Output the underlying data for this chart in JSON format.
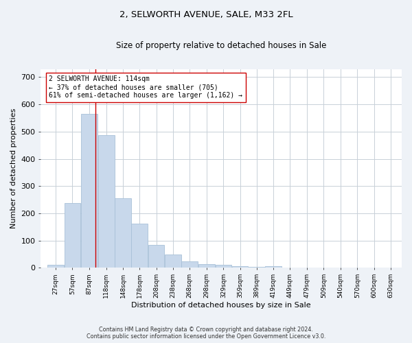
{
  "title": "2, SELWORTH AVENUE, SALE, M33 2FL",
  "subtitle": "Size of property relative to detached houses in Sale",
  "xlabel": "Distribution of detached houses by size in Sale",
  "ylabel": "Number of detached properties",
  "bar_color": "#c8d8eb",
  "bar_edge_color": "#a8c0d8",
  "bin_labels": [
    "27sqm",
    "57sqm",
    "87sqm",
    "118sqm",
    "148sqm",
    "178sqm",
    "208sqm",
    "238sqm",
    "268sqm",
    "298sqm",
    "329sqm",
    "359sqm",
    "389sqm",
    "419sqm",
    "449sqm",
    "479sqm",
    "509sqm",
    "540sqm",
    "570sqm",
    "600sqm",
    "630sqm"
  ],
  "bin_left_edges": [
    27,
    57,
    87,
    118,
    148,
    178,
    208,
    238,
    268,
    298,
    329,
    359,
    389,
    419,
    449,
    479,
    509,
    540,
    570,
    600,
    630
  ],
  "bin_widths": [
    30,
    30,
    31,
    30,
    30,
    30,
    30,
    30,
    30,
    31,
    30,
    30,
    30,
    30,
    30,
    30,
    31,
    30,
    30,
    30,
    30
  ],
  "values": [
    10,
    238,
    565,
    488,
    255,
    162,
    85,
    48,
    25,
    13,
    10,
    7,
    4,
    5,
    0,
    0,
    0,
    0,
    0,
    0,
    0
  ],
  "property_size": 114,
  "vline_color": "#cc0000",
  "annotation_text": "2 SELWORTH AVENUE: 114sqm\n← 37% of detached houses are smaller (705)\n61% of semi-detached houses are larger (1,162) →",
  "annotation_box_color": "#ffffff",
  "annotation_box_edge": "#cc0000",
  "ylim": [
    0,
    730
  ],
  "yticks": [
    0,
    100,
    200,
    300,
    400,
    500,
    600,
    700
  ],
  "footer_line1": "Contains HM Land Registry data © Crown copyright and database right 2024.",
  "footer_line2": "Contains public sector information licensed under the Open Government Licence v3.0.",
  "background_color": "#eef2f7",
  "plot_bg_color": "#ffffff",
  "grid_color": "#c8d0d8"
}
